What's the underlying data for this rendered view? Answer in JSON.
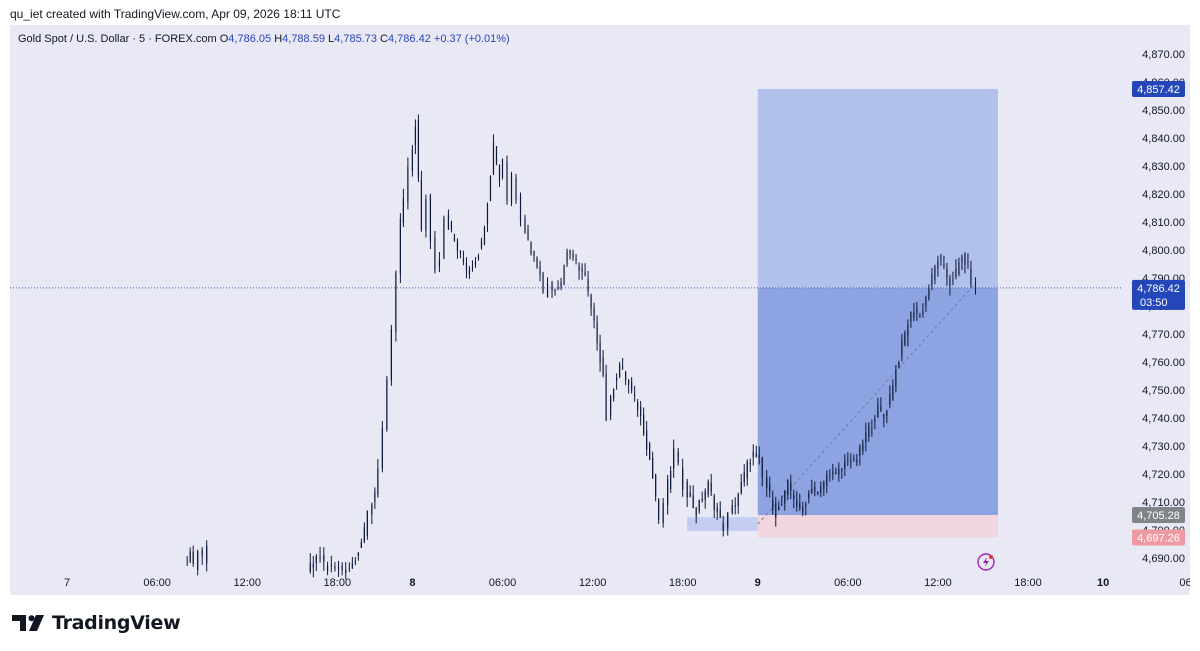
{
  "header": {
    "credit": "qu_iet created with TradingView.com, Apr 09, 2026 18:11 UTC"
  },
  "legend": {
    "symbol": "Gold Spot / U.S. Dollar · 5 · FOREX.com",
    "o_label": "O",
    "o": "4,786.05",
    "h_label": "H",
    "h": "4,788.59",
    "l_label": "L",
    "l": "4,785.73",
    "c_label": "C",
    "c": "4,786.42",
    "change": "+0.37 (+0.01%)"
  },
  "brand": {
    "name": "TradingView"
  },
  "colors": {
    "background": "#e9e8f5",
    "candle": "#0e1a3a",
    "target_zone": "#b2c1ec",
    "profit_zone": "#8ea4e2",
    "stop_zone": "#f1d5df",
    "accent_blue": "#2347b8",
    "price_line": "#3f5bb0",
    "stop_label": "#ef9aa3",
    "entry_label": "#808388",
    "alert_icon": "#9c27b0"
  },
  "chart_data": {
    "type": "candlestick",
    "symbol": "XAUUSD",
    "timeframe": "5",
    "ylim": [
      4686,
      4876
    ],
    "y_ticks": [
      4690,
      4700,
      4710,
      4720,
      4730,
      4740,
      4750,
      4760,
      4770,
      4780,
      4790,
      4800,
      4810,
      4820,
      4830,
      4840,
      4850,
      4860,
      4870
    ],
    "y_tick_labels": [
      "4,690.00",
      "4,700.00",
      "4,710.00",
      "4,720.00",
      "4,730.00",
      "4,740.00",
      "4,750.00",
      "4,760.00",
      "4,770.00",
      "4,780.00",
      "4,790.00",
      "4,800.00",
      "4,810.00",
      "4,820.00",
      "4,830.00",
      "4,840.00",
      "4,850.00",
      "4,860.00",
      "4,870.00"
    ],
    "x_range_hours": [
      -3.8,
      62.8
    ],
    "x_ticks": [
      {
        "t": 0,
        "label": "7",
        "bold": false
      },
      {
        "t": 6,
        "label": "06:00",
        "bold": false
      },
      {
        "t": 12,
        "label": "12:00",
        "bold": false
      },
      {
        "t": 18,
        "label": "18:00",
        "bold": false
      },
      {
        "t": 23,
        "label": "8",
        "bold": true
      },
      {
        "t": 29,
        "label": "06:00",
        "bold": false
      },
      {
        "t": 35,
        "label": "12:00",
        "bold": false
      },
      {
        "t": 41,
        "label": "18:00",
        "bold": false
      },
      {
        "t": 46,
        "label": "9",
        "bold": true
      },
      {
        "t": 52,
        "label": "06:00",
        "bold": false
      },
      {
        "t": 58,
        "label": "12:00",
        "bold": false
      },
      {
        "t": 64,
        "label": "18:00",
        "bold": false
      },
      {
        "t": 69,
        "label": "10",
        "bold": true
      },
      {
        "t": 75,
        "label": "06:00",
        "bold": false
      }
    ],
    "price_path": [
      [
        8.0,
        4688
      ],
      [
        8.4,
        4692
      ],
      [
        8.7,
        4686
      ],
      [
        9.0,
        4691
      ],
      [
        9.3,
        4694
      ],
      [
        9.6,
        4686
      ],
      [
        16.2,
        4686
      ],
      [
        16.6,
        4688
      ],
      [
        17.1,
        4690
      ],
      [
        17.6,
        4686
      ],
      [
        18.8,
        4686
      ],
      [
        19.2,
        4688
      ],
      [
        19.6,
        4693
      ],
      [
        20.0,
        4699
      ],
      [
        20.3,
        4706
      ],
      [
        20.7,
        4714
      ],
      [
        21.0,
        4723
      ],
      [
        21.3,
        4736
      ],
      [
        21.6,
        4752
      ],
      [
        21.9,
        4770
      ],
      [
        22.2,
        4792
      ],
      [
        22.4,
        4810
      ],
      [
        22.7,
        4818
      ],
      [
        23.0,
        4828
      ],
      [
        23.2,
        4836
      ],
      [
        23.4,
        4845
      ],
      [
        23.6,
        4825
      ],
      [
        23.9,
        4806
      ],
      [
        24.2,
        4819
      ],
      [
        24.5,
        4803
      ],
      [
        24.8,
        4794
      ],
      [
        25.1,
        4798
      ],
      [
        25.4,
        4812
      ],
      [
        25.8,
        4806
      ],
      [
        26.2,
        4800
      ],
      [
        26.6,
        4796
      ],
      [
        27.0,
        4792
      ],
      [
        27.4,
        4797
      ],
      [
        27.8,
        4802
      ],
      [
        28.2,
        4818
      ],
      [
        28.6,
        4838
      ],
      [
        29.0,
        4825
      ],
      [
        29.3,
        4833
      ],
      [
        29.6,
        4818
      ],
      [
        29.9,
        4827
      ],
      [
        30.2,
        4819
      ],
      [
        30.5,
        4812
      ],
      [
        30.9,
        4803
      ],
      [
        31.3,
        4797
      ],
      [
        31.7,
        4793
      ],
      [
        32.0,
        4784
      ],
      [
        32.3,
        4788
      ],
      [
        32.7,
        4786
      ],
      [
        33.1,
        4789
      ],
      [
        33.5,
        4800
      ],
      [
        33.9,
        4797
      ],
      [
        34.3,
        4794
      ],
      [
        34.7,
        4790
      ],
      [
        35.1,
        4778
      ],
      [
        35.5,
        4768
      ],
      [
        35.9,
        4755
      ],
      [
        36.2,
        4740
      ],
      [
        36.6,
        4752
      ],
      [
        37.0,
        4759
      ],
      [
        37.4,
        4754
      ],
      [
        37.8,
        4749
      ],
      [
        38.2,
        4744
      ],
      [
        38.6,
        4736
      ],
      [
        39.0,
        4725
      ],
      [
        39.4,
        4712
      ],
      [
        39.7,
        4702
      ],
      [
        40.0,
        4710
      ],
      [
        40.4,
        4722
      ],
      [
        40.7,
        4728
      ],
      [
        41.0,
        4722
      ],
      [
        41.3,
        4716
      ],
      [
        41.7,
        4711
      ],
      [
        42.1,
        4706
      ],
      [
        42.5,
        4712
      ],
      [
        42.9,
        4716
      ],
      [
        43.3,
        4709
      ],
      [
        43.7,
        4703
      ],
      [
        44.0,
        4701
      ],
      [
        44.3,
        4705
      ],
      [
        44.7,
        4710
      ],
      [
        45.1,
        4716
      ],
      [
        45.5,
        4723
      ],
      [
        45.9,
        4727
      ],
      [
        46.3,
        4725
      ],
      [
        46.6,
        4718
      ],
      [
        47.0,
        4712
      ],
      [
        47.4,
        4706
      ],
      [
        47.8,
        4709
      ],
      [
        48.2,
        4716
      ],
      [
        48.6,
        4712
      ],
      [
        49.0,
        4706
      ],
      [
        49.4,
        4710
      ],
      [
        49.8,
        4716
      ],
      [
        50.2,
        4712
      ],
      [
        50.6,
        4717
      ],
      [
        51.0,
        4721
      ],
      [
        51.4,
        4719
      ],
      [
        51.8,
        4722
      ],
      [
        52.2,
        4726
      ],
      [
        52.6,
        4723
      ],
      [
        53.0,
        4728
      ],
      [
        53.4,
        4734
      ],
      [
        53.8,
        4738
      ],
      [
        54.2,
        4743
      ],
      [
        54.6,
        4740
      ],
      [
        55.0,
        4748
      ],
      [
        55.4,
        4757
      ],
      [
        55.8,
        4766
      ],
      [
        56.2,
        4774
      ],
      [
        56.6,
        4779
      ],
      [
        57.0,
        4776
      ],
      [
        57.4,
        4783
      ],
      [
        57.8,
        4790
      ],
      [
        58.2,
        4797
      ],
      [
        58.6,
        4793
      ],
      [
        59.0,
        4788
      ],
      [
        59.4,
        4792
      ],
      [
        59.8,
        4797
      ],
      [
        60.2,
        4794
      ],
      [
        60.5,
        4789
      ],
      [
        60.8,
        4786
      ]
    ],
    "position": {
      "kind": "long",
      "t_start": 46.0,
      "t_end": 62.0,
      "target": 4857.42,
      "entry": 4705.28,
      "stop": 4697.26,
      "current": 4786.42
    },
    "small_zone": {
      "t_start": 41.3,
      "t_end": 46.0,
      "high": 4704.5,
      "low": 4699.6
    },
    "trend_line": {
      "from": [
        46.0,
        4702
      ],
      "to": [
        60.5,
        4788
      ]
    },
    "price_labels": {
      "target": "4,857.42",
      "current": "4,786.42",
      "countdown": "03:50",
      "entry": "4,705.28",
      "stop": "4,697.26"
    },
    "alert_icon": {
      "t": 61.2,
      "price": 4688.5
    }
  }
}
